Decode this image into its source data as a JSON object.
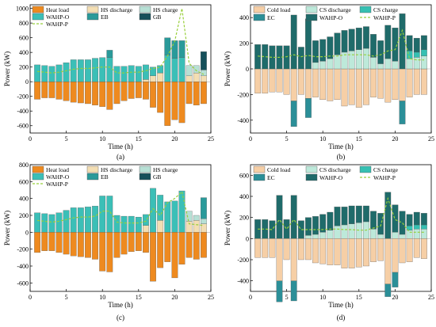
{
  "colors": {
    "heat_load": "#ee8a1f",
    "hs_discharge": "#f3deb3",
    "hs_charge": "#b7e0d5",
    "wahp_o": "#3bbfb7",
    "eb": "#2a9a9a",
    "gb": "#15505a",
    "cold_load": "#f6cfa6",
    "cs_discharge": "#bde9da",
    "cs_charge": "#35c0b2",
    "ec": "#2b8f98",
    "wahp_o_cool": "#1f6b6a",
    "wahp_p": "#98cf3a"
  },
  "chart_data": [
    {
      "type": "bar",
      "panel": "(a)",
      "xlabel": "Time (h)",
      "ylabel": "Power (kW)",
      "xlim": [
        0,
        25
      ],
      "ylim": [
        -700,
        1050
      ],
      "xticks": [
        "0",
        "5",
        "10",
        "15",
        "20",
        "25"
      ],
      "yticks": [
        "-600",
        "-400",
        "-200",
        "0",
        "200",
        "400",
        "600",
        "800",
        "1000"
      ],
      "hours": [
        1,
        2,
        3,
        4,
        5,
        6,
        7,
        8,
        9,
        10,
        11,
        12,
        13,
        14,
        15,
        16,
        17,
        18,
        19,
        20,
        21,
        22,
        23,
        24
      ],
      "legend": [
        "Heat load",
        "HS discharge",
        "HS charge",
        "WAHP-O",
        "EB",
        "GB",
        "WAHP-P"
      ],
      "series": [
        {
          "name": "Heat load",
          "key": "heat_load",
          "values": [
            -240,
            -220,
            -220,
            -240,
            -260,
            -280,
            -290,
            -300,
            -320,
            -340,
            -380,
            -300,
            -260,
            -230,
            -220,
            -240,
            -350,
            -420,
            -600,
            -520,
            -560,
            -300,
            -320,
            -300
          ]
        },
        {
          "name": "HS discharge",
          "key": "hs_discharge",
          "values": [
            0,
            0,
            0,
            0,
            0,
            0,
            0,
            0,
            0,
            0,
            0,
            0,
            0,
            0,
            0,
            30,
            80,
            120,
            0,
            0,
            0,
            80,
            120,
            80
          ]
        },
        {
          "name": "HS charge",
          "key": "hs_charge",
          "values": [
            0,
            0,
            0,
            0,
            0,
            0,
            0,
            0,
            0,
            0,
            0,
            0,
            0,
            0,
            0,
            0,
            0,
            0,
            0,
            0,
            0,
            140,
            100,
            80
          ]
        },
        {
          "name": "WAHP-O",
          "key": "wahp_o",
          "values": [
            230,
            220,
            210,
            230,
            260,
            300,
            300,
            300,
            320,
            330,
            330,
            210,
            210,
            220,
            210,
            200,
            120,
            100,
            360,
            320,
            330,
            0,
            0,
            0
          ]
        },
        {
          "name": "EB",
          "key": "eb",
          "values": [
            0,
            0,
            0,
            0,
            0,
            0,
            0,
            0,
            0,
            0,
            100,
            0,
            0,
            0,
            0,
            0,
            0,
            0,
            240,
            240,
            230,
            0,
            0,
            0
          ]
        },
        {
          "name": "GB",
          "key": "gb",
          "values": [
            0,
            0,
            0,
            0,
            0,
            0,
            0,
            0,
            0,
            0,
            0,
            0,
            0,
            0,
            0,
            0,
            0,
            0,
            0,
            0,
            0,
            0,
            0,
            250
          ]
        },
        {
          "name": "WAHP-P",
          "key": "wahp_p",
          "line": true,
          "values": [
            140,
            130,
            120,
            130,
            150,
            170,
            180,
            180,
            190,
            200,
            200,
            120,
            120,
            130,
            130,
            150,
            180,
            200,
            350,
            550,
            1000,
            250,
            150,
            100
          ]
        }
      ]
    },
    {
      "type": "bar",
      "panel": "(b)",
      "xlabel": "Time (h)",
      "ylabel": "Power (kW)",
      "xlim": [
        0,
        25
      ],
      "ylim": [
        -500,
        500
      ],
      "xticks": [
        "0",
        "5",
        "10",
        "15",
        "20",
        "25"
      ],
      "yticks": [
        "-400",
        "-200",
        "0",
        "200",
        "400"
      ],
      "hours": [
        1,
        2,
        3,
        4,
        5,
        6,
        7,
        8,
        9,
        10,
        11,
        12,
        13,
        14,
        15,
        16,
        17,
        18,
        19,
        20,
        21,
        22,
        23,
        24
      ],
      "legend": [
        "Cold load",
        "CS discharge",
        "CS charge",
        "EC",
        "WAHP-O",
        "WAHP-P"
      ],
      "series": [
        {
          "name": "Cold load",
          "key": "cold_load",
          "values": [
            -190,
            -190,
            -180,
            -180,
            -200,
            -250,
            -200,
            -230,
            -220,
            -240,
            -250,
            -240,
            -290,
            -280,
            -300,
            -280,
            -220,
            -230,
            -260,
            -240,
            -250,
            -220,
            -200,
            -200
          ]
        },
        {
          "name": "CS discharge",
          "key": "cs_discharge",
          "values": [
            0,
            0,
            0,
            0,
            0,
            0,
            0,
            0,
            50,
            60,
            80,
            110,
            130,
            140,
            150,
            160,
            90,
            40,
            80,
            60,
            0,
            80,
            90,
            100
          ]
        },
        {
          "name": "CS charge",
          "key": "cs_charge",
          "values": [
            0,
            0,
            0,
            0,
            0,
            0,
            0,
            0,
            0,
            0,
            0,
            0,
            0,
            0,
            0,
            0,
            0,
            0,
            0,
            0,
            0,
            60,
            40,
            50
          ]
        },
        {
          "name": "EC",
          "key": "ec",
          "values": [
            0,
            0,
            0,
            0,
            0,
            -200,
            0,
            -150,
            0,
            0,
            0,
            0,
            0,
            0,
            0,
            0,
            0,
            0,
            0,
            0,
            -180,
            0,
            0,
            0
          ]
        },
        {
          "name": "WAHP-O",
          "key": "wahp_o_cool",
          "values": [
            190,
            190,
            180,
            180,
            180,
            420,
            170,
            390,
            170,
            170,
            170,
            170,
            170,
            170,
            170,
            170,
            180,
            180,
            260,
            260,
            430,
            120,
            110,
            110
          ]
        },
        {
          "name": "WAHP-P",
          "key": "wahp_p",
          "line": true,
          "values": [
            100,
            95,
            90,
            90,
            95,
            110,
            95,
            105,
            95,
            95,
            100,
            100,
            110,
            110,
            110,
            110,
            100,
            110,
            140,
            150,
            300,
            80,
            70,
            70
          ]
        }
      ]
    },
    {
      "type": "bar",
      "panel": "(c)",
      "xlabel": "Time (h)",
      "ylabel": "Power (kW)",
      "xlim": [
        0,
        25
      ],
      "ylim": [
        -700,
        800
      ],
      "xticks": [
        "0",
        "5",
        "10",
        "15",
        "20",
        "25"
      ],
      "yticks": [
        "-600",
        "-400",
        "-200",
        "0",
        "200",
        "400",
        "600",
        "800"
      ],
      "hours": [
        1,
        2,
        3,
        4,
        5,
        6,
        7,
        8,
        9,
        10,
        11,
        12,
        13,
        14,
        15,
        16,
        17,
        18,
        19,
        20,
        21,
        22,
        23,
        24
      ],
      "legend": [
        "Heat load",
        "HS discharge",
        "HS charge",
        "WAHP-O",
        "EB",
        "GB",
        "WAHP-P"
      ],
      "series": [
        {
          "name": "Heat load",
          "key": "heat_load",
          "values": [
            -240,
            -220,
            -220,
            -240,
            -260,
            -280,
            -290,
            -300,
            -320,
            -460,
            -470,
            -300,
            -260,
            -230,
            -220,
            -240,
            -580,
            -420,
            -350,
            -540,
            -380,
            -300,
            -320,
            -300
          ]
        },
        {
          "name": "HS discharge",
          "key": "hs_discharge",
          "values": [
            0,
            0,
            0,
            0,
            0,
            0,
            0,
            0,
            0,
            0,
            0,
            0,
            0,
            0,
            0,
            80,
            0,
            140,
            0,
            0,
            0,
            130,
            140,
            100
          ]
        },
        {
          "name": "HS charge",
          "key": "hs_charge",
          "values": [
            0,
            0,
            0,
            0,
            0,
            0,
            0,
            0,
            0,
            0,
            0,
            0,
            0,
            0,
            0,
            0,
            0,
            0,
            0,
            0,
            0,
            120,
            60,
            60
          ]
        },
        {
          "name": "WAHP-O",
          "key": "wahp_o",
          "values": [
            230,
            220,
            210,
            230,
            260,
            290,
            290,
            300,
            310,
            430,
            430,
            200,
            190,
            190,
            180,
            130,
            520,
            300,
            360,
            370,
            490,
            0,
            0,
            0
          ]
        },
        {
          "name": "EB",
          "key": "eb",
          "values": [
            0,
            0,
            0,
            0,
            0,
            0,
            0,
            0,
            0,
            0,
            0,
            0,
            0,
            0,
            0,
            0,
            0,
            0,
            0,
            0,
            0,
            0,
            0,
            250
          ]
        },
        {
          "name": "GB",
          "key": "gb",
          "values": [
            0,
            0,
            0,
            0,
            0,
            0,
            0,
            0,
            0,
            0,
            0,
            0,
            0,
            0,
            0,
            0,
            0,
            0,
            0,
            0,
            0,
            0,
            0,
            0
          ]
        },
        {
          "name": "WAHP-P",
          "key": "wahp_p",
          "line": true,
          "values": [
            140,
            130,
            120,
            130,
            150,
            170,
            180,
            180,
            190,
            250,
            250,
            120,
            110,
            110,
            110,
            130,
            280,
            200,
            350,
            400,
            480,
            100,
            90,
            80
          ]
        }
      ]
    },
    {
      "type": "bar",
      "panel": "(d)",
      "xlabel": "Time (h)",
      "ylabel": "Power (kW)",
      "xlim": [
        0,
        25
      ],
      "ylim": [
        -500,
        700
      ],
      "xticks": [
        "0",
        "5",
        "10",
        "15",
        "20",
        "25"
      ],
      "yticks": [
        "-400",
        "-200",
        "0",
        "200",
        "400",
        "600"
      ],
      "hours": [
        1,
        2,
        3,
        4,
        5,
        6,
        7,
        8,
        9,
        10,
        11,
        12,
        13,
        14,
        15,
        16,
        17,
        18,
        19,
        20,
        21,
        22,
        23,
        24
      ],
      "legend": [
        "Cold load",
        "CS discharge",
        "CS charge",
        "EC",
        "WAHP-O",
        "WAHP-P"
      ],
      "series": [
        {
          "name": "Cold load",
          "key": "cold_load",
          "values": [
            -180,
            -180,
            -180,
            -400,
            -200,
            -400,
            -200,
            -200,
            -230,
            -240,
            -250,
            -250,
            -280,
            -280,
            -270,
            -260,
            -220,
            -210,
            -430,
            -320,
            -230,
            -220,
            -180,
            -190
          ]
        },
        {
          "name": "CS discharge",
          "key": "cs_discharge",
          "values": [
            0,
            0,
            0,
            0,
            0,
            0,
            0,
            30,
            40,
            60,
            80,
            120,
            130,
            140,
            150,
            160,
            90,
            40,
            0,
            60,
            40,
            80,
            90,
            90
          ]
        },
        {
          "name": "CS charge",
          "key": "cs_charge",
          "values": [
            0,
            0,
            0,
            0,
            0,
            0,
            0,
            0,
            0,
            0,
            0,
            0,
            0,
            0,
            0,
            0,
            0,
            0,
            0,
            0,
            0,
            40,
            40,
            40
          ]
        },
        {
          "name": "EC",
          "key": "ec",
          "values": [
            0,
            0,
            0,
            -200,
            0,
            -190,
            0,
            0,
            0,
            0,
            0,
            0,
            0,
            0,
            0,
            0,
            0,
            0,
            -120,
            -140,
            0,
            0,
            0,
            0
          ]
        },
        {
          "name": "WAHP-O",
          "key": "wahp_o_cool",
          "values": [
            180,
            180,
            170,
            410,
            180,
            410,
            170,
            170,
            170,
            170,
            170,
            180,
            170,
            170,
            160,
            150,
            170,
            200,
            440,
            260,
            220,
            110,
            120,
            110
          ]
        },
        {
          "name": "WAHP-P",
          "key": "wahp_p",
          "line": true,
          "values": [
            90,
            90,
            85,
            180,
            90,
            180,
            85,
            85,
            85,
            85,
            90,
            90,
            85,
            85,
            80,
            80,
            100,
            120,
            380,
            180,
            150,
            60,
            60,
            60
          ]
        }
      ]
    }
  ]
}
